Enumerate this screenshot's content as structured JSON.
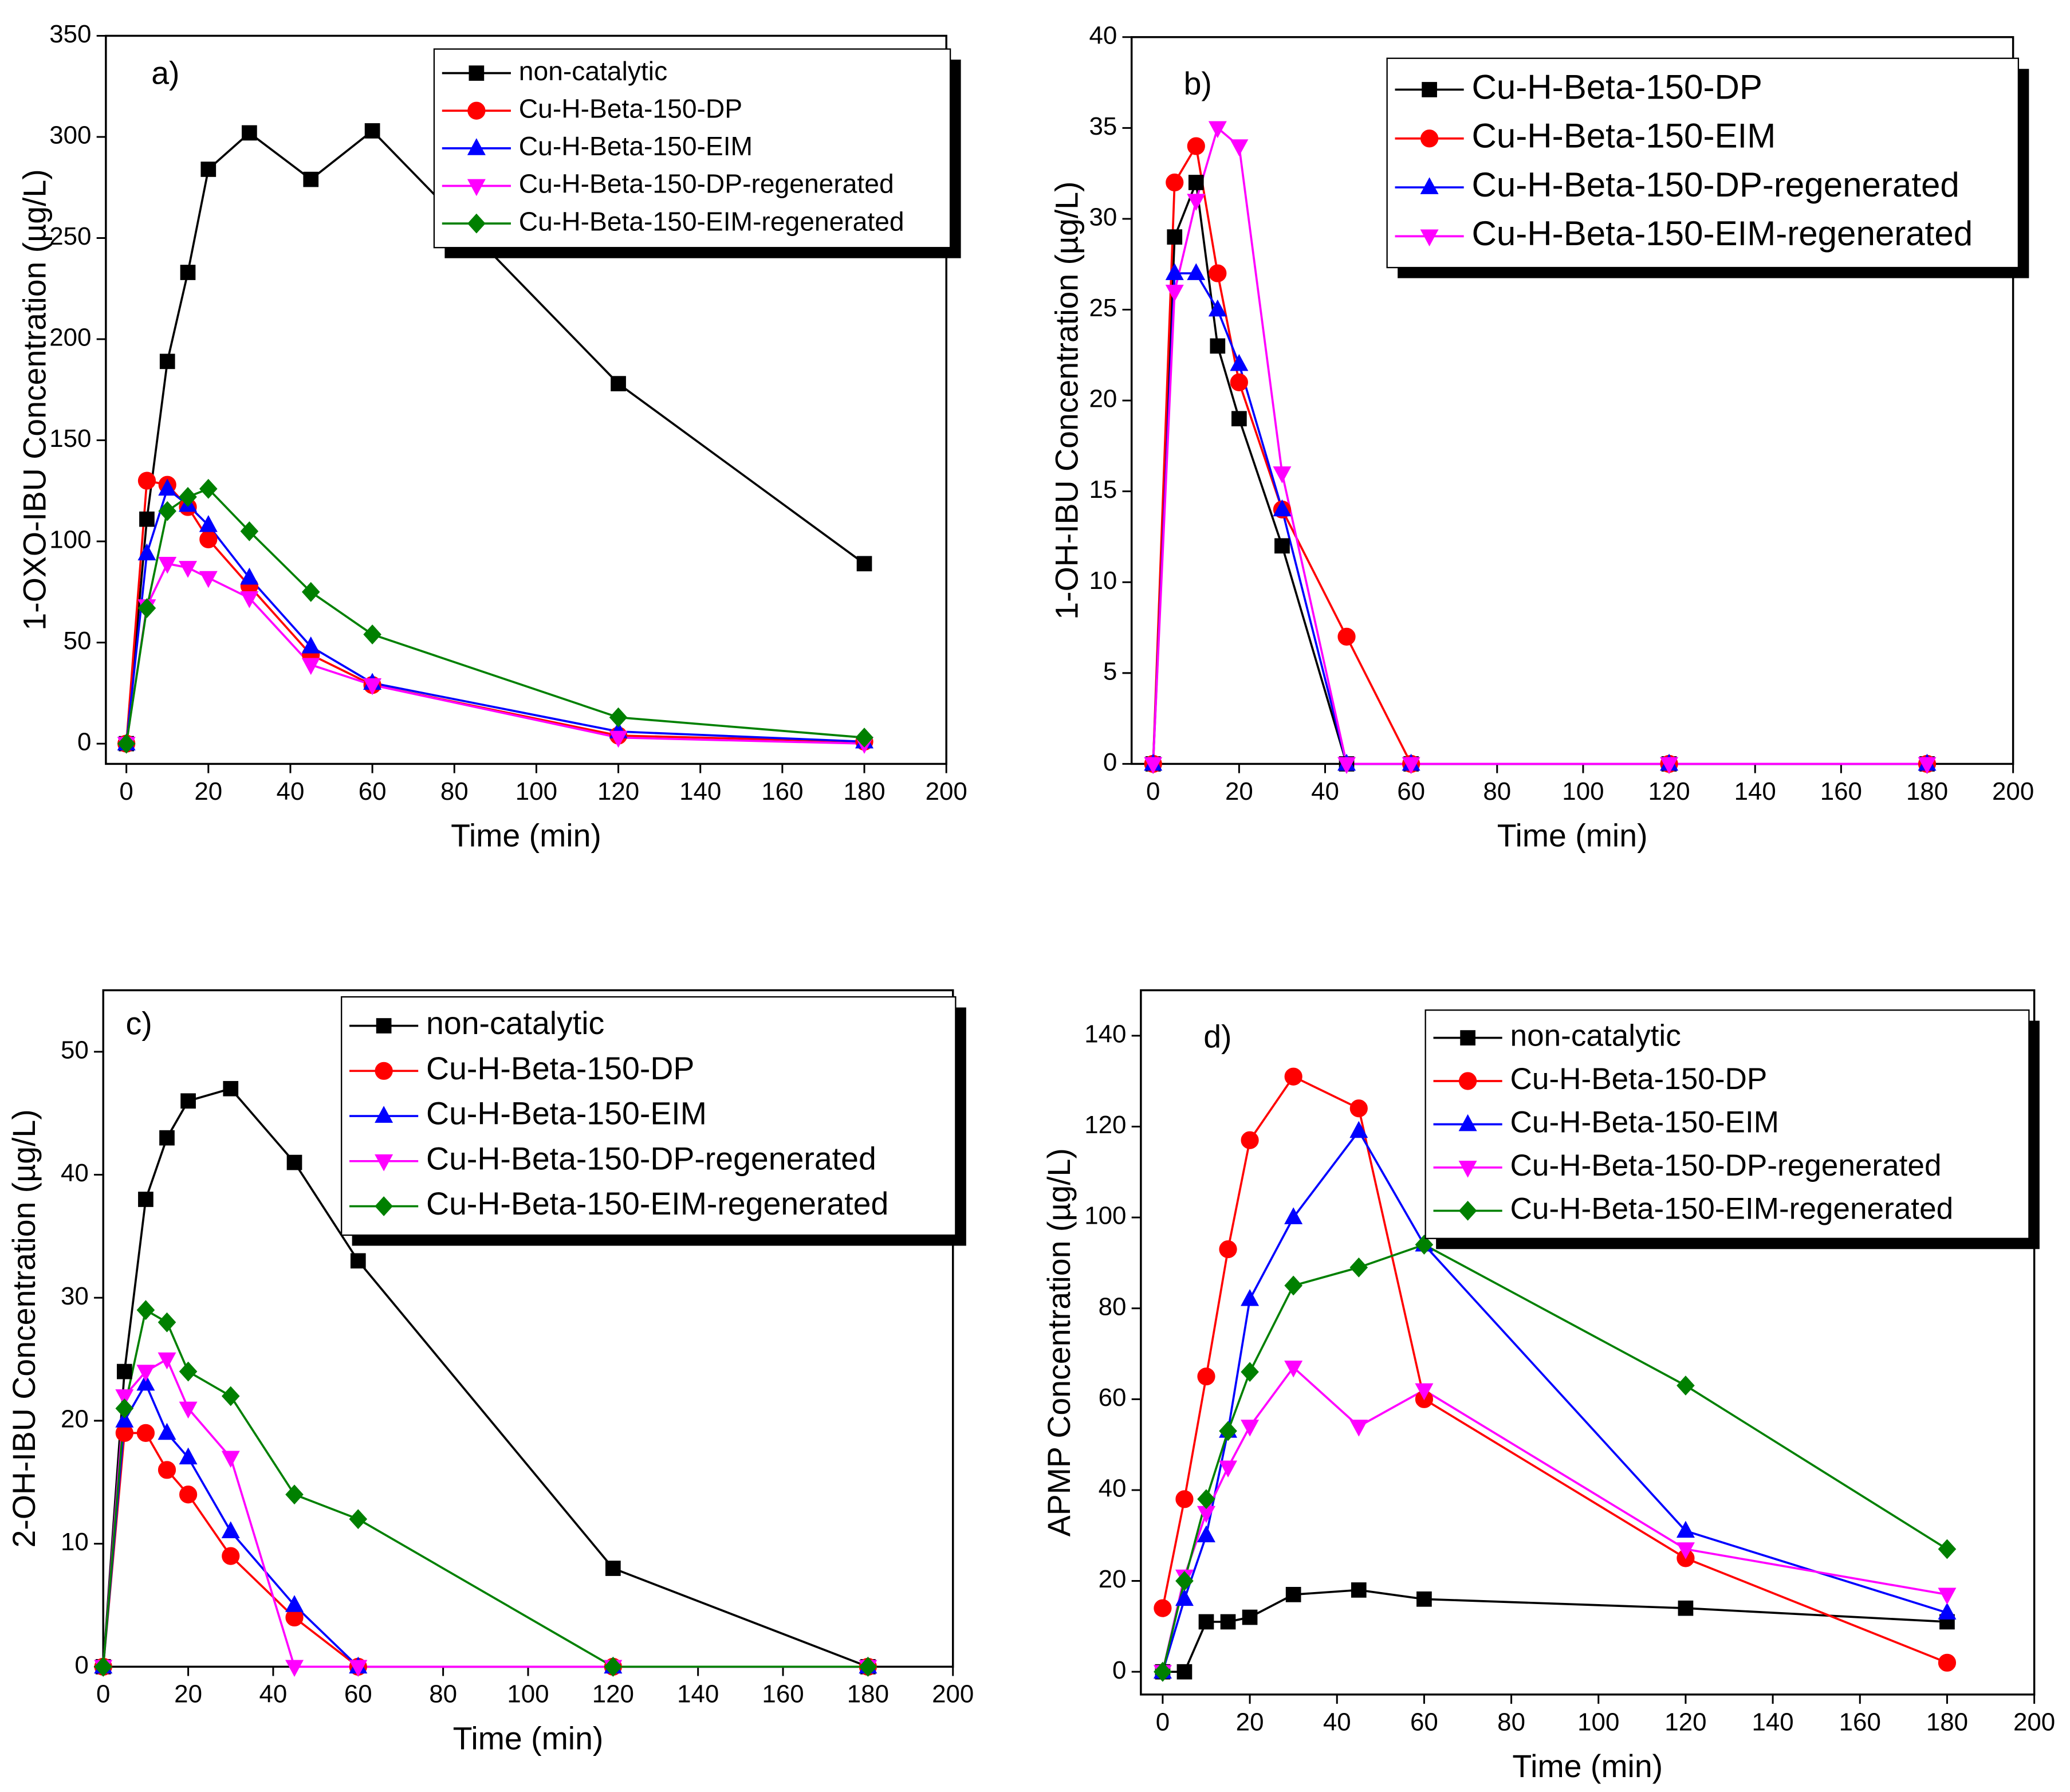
{
  "chart_data": [
    {
      "type": "line",
      "label": "a)",
      "x_label": "Time (min)",
      "y_label": "1-OXO-IBU Concentration (µg/L)",
      "x": [
        0,
        5,
        10,
        15,
        20,
        30,
        45,
        60,
        120,
        180
      ],
      "xlim": [
        -5,
        200
      ],
      "xticks": [
        0,
        20,
        40,
        60,
        80,
        100,
        120,
        140,
        160,
        180,
        200
      ],
      "ylim": [
        -10,
        350
      ],
      "yticks": [
        0,
        50,
        100,
        150,
        200,
        250,
        300,
        350
      ],
      "legend": "upper right",
      "series": [
        {
          "name": "non-catalytic",
          "color": "#000000",
          "marker": "square",
          "values": [
            0,
            111,
            189,
            233,
            284,
            302,
            279,
            303,
            178,
            89
          ]
        },
        {
          "name": "Cu-H-Beta-150-DP",
          "color": "#ff0000",
          "marker": "circle",
          "values": [
            0,
            130,
            128,
            117,
            101,
            78,
            44,
            29,
            4,
            1
          ]
        },
        {
          "name": "Cu-H-Beta-150-EIM",
          "color": "#0000ff",
          "marker": "triangle",
          "values": [
            0,
            94,
            126,
            118,
            108,
            82,
            48,
            30,
            6,
            1
          ]
        },
        {
          "name": "Cu-H-Beta-150-DP-regenerated",
          "color": "#ff00ff",
          "marker": "down-triangle",
          "values": [
            0,
            68,
            89,
            87,
            82,
            72,
            39,
            29,
            3,
            0
          ]
        },
        {
          "name": "Cu-H-Beta-150-EIM-regenerated",
          "color": "#008000",
          "marker": "diamond",
          "values": [
            0,
            67,
            115,
            122,
            126,
            105,
            75,
            54,
            13,
            3
          ]
        }
      ]
    },
    {
      "type": "line",
      "label": "b)",
      "x_label": "Time (min)",
      "y_label": "1-OH-IBU Concentration (µg/L)",
      "x": [
        0,
        5,
        10,
        15,
        20,
        30,
        45,
        60,
        120,
        180
      ],
      "xlim": [
        -5,
        200
      ],
      "xticks": [
        0,
        20,
        40,
        60,
        80,
        100,
        120,
        140,
        160,
        180,
        200
      ],
      "ylim": [
        0,
        40
      ],
      "yticks": [
        0,
        5,
        10,
        15,
        20,
        25,
        30,
        35,
        40
      ],
      "legend": "upper right",
      "series": [
        {
          "name": "Cu-H-Beta-150-DP",
          "color": "#000000",
          "marker": "square",
          "values": [
            0,
            29,
            32,
            23,
            19,
            12,
            0,
            0,
            0,
            0
          ]
        },
        {
          "name": "Cu-H-Beta-150-EIM",
          "color": "#ff0000",
          "marker": "circle",
          "values": [
            0,
            32,
            34,
            27,
            21,
            14,
            7,
            0,
            0,
            0
          ]
        },
        {
          "name": "Cu-H-Beta-150-DP-regenerated",
          "color": "#0000ff",
          "marker": "triangle",
          "values": [
            0,
            27,
            27,
            25,
            22,
            14,
            0,
            0,
            0,
            0
          ]
        },
        {
          "name": "Cu-H-Beta-150-EIM-regenerated",
          "color": "#ff00ff",
          "marker": "down-triangle",
          "values": [
            0,
            26,
            31,
            35,
            34,
            16,
            0,
            0,
            0,
            0
          ]
        }
      ]
    },
    {
      "type": "line",
      "label": "c)",
      "x_label": "Time (min)",
      "y_label": "2-OH-IBU Concentration (µg/L)",
      "x": [
        0,
        5,
        10,
        15,
        20,
        30,
        45,
        60,
        120,
        180
      ],
      "xlim": [
        0,
        200
      ],
      "xticks": [
        0,
        20,
        40,
        60,
        80,
        100,
        120,
        140,
        160,
        180,
        200
      ],
      "ylim": [
        0,
        55
      ],
      "yticks": [
        0,
        10,
        20,
        30,
        40,
        50
      ],
      "legend": "upper right",
      "series": [
        {
          "name": "non-catalytic",
          "color": "#000000",
          "marker": "square",
          "values": [
            0,
            24,
            38,
            43,
            46,
            47,
            41,
            33,
            8,
            0
          ]
        },
        {
          "name": "Cu-H-Beta-150-DP",
          "color": "#ff0000",
          "marker": "circle",
          "values": [
            0,
            19,
            19,
            16,
            14,
            9,
            4,
            0,
            0,
            0
          ]
        },
        {
          "name": "Cu-H-Beta-150-EIM",
          "color": "#0000ff",
          "marker": "triangle",
          "values": [
            0,
            20,
            23,
            19,
            17,
            11,
            5,
            0,
            0,
            0
          ]
        },
        {
          "name": "Cu-H-Beta-150-DP-regenerated",
          "color": "#ff00ff",
          "marker": "down-triangle",
          "values": [
            0,
            22,
            24,
            25,
            21,
            17,
            0,
            0,
            0,
            0
          ]
        },
        {
          "name": "Cu-H-Beta-150-EIM-regenerated",
          "color": "#008000",
          "marker": "diamond",
          "values": [
            0,
            21,
            29,
            28,
            24,
            22,
            14,
            12,
            0,
            0
          ]
        }
      ]
    },
    {
      "type": "line",
      "label": "d)",
      "x_label": "Time (min)",
      "y_label": "APMP Concentration (µg/L)",
      "x": [
        0,
        5,
        10,
        15,
        20,
        30,
        45,
        60,
        120,
        180
      ],
      "xlim": [
        -5,
        200
      ],
      "xticks": [
        0,
        20,
        40,
        60,
        80,
        100,
        120,
        140,
        160,
        180,
        200
      ],
      "ylim": [
        -5,
        150
      ],
      "yticks": [
        0,
        20,
        40,
        60,
        80,
        100,
        120,
        140
      ],
      "legend": "upper right",
      "series": [
        {
          "name": "non-catalytic",
          "color": "#000000",
          "marker": "square",
          "values": [
            0,
            0,
            11,
            11,
            12,
            17,
            18,
            16,
            14,
            11
          ]
        },
        {
          "name": "Cu-H-Beta-150-DP",
          "color": "#ff0000",
          "marker": "circle",
          "values": [
            14,
            38,
            65,
            93,
            117,
            131,
            124,
            60,
            25,
            2
          ]
        },
        {
          "name": "Cu-H-Beta-150-EIM",
          "color": "#0000ff",
          "marker": "triangle",
          "values": [
            0,
            16,
            30,
            53,
            82,
            100,
            119,
            94,
            31,
            13
          ]
        },
        {
          "name": "Cu-H-Beta-150-DP-regenerated",
          "color": "#ff00ff",
          "marker": "down-triangle",
          "values": [
            0,
            21,
            35,
            45,
            54,
            67,
            54,
            62,
            27,
            17
          ]
        },
        {
          "name": "Cu-H-Beta-150-EIM-regenerated",
          "color": "#008000",
          "marker": "diamond",
          "values": [
            0,
            20,
            38,
            53,
            66,
            85,
            89,
            94,
            63,
            27
          ]
        }
      ]
    }
  ]
}
